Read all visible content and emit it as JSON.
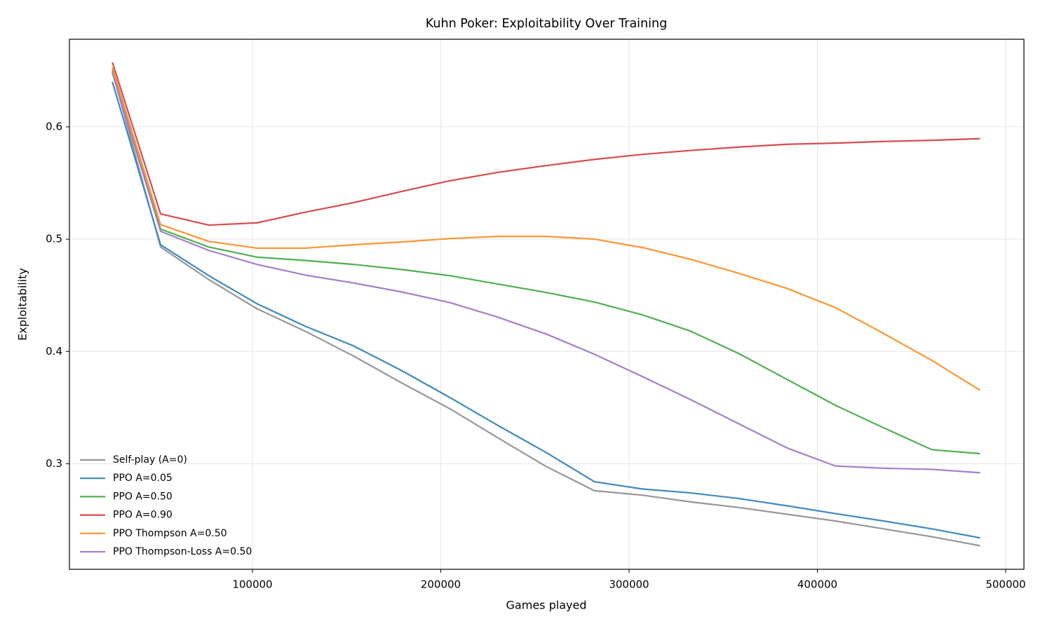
{
  "chart_data": {
    "type": "line",
    "title": "Kuhn Poker: Exploitability Over Training",
    "x_label": "Games played",
    "y_label": "Exploitability",
    "x": [
      25600,
      51200,
      76800,
      102400,
      128000,
      153600,
      179200,
      204800,
      230400,
      256000,
      281600,
      307200,
      332800,
      358400,
      384000,
      409600,
      435200,
      460800,
      486400
    ],
    "series": [
      {
        "name": "Self-play (A=0)",
        "color": "#979797",
        "values": [
          0.649,
          0.493,
          0.464,
          0.438,
          0.418,
          0.396,
          0.372,
          0.349,
          0.323,
          0.2975,
          0.276,
          0.272,
          0.266,
          0.261,
          0.255,
          0.249,
          0.242,
          0.235,
          0.227
        ]
      },
      {
        "name": "PPO A=0.05",
        "color": "#3d8ac0",
        "values": [
          0.64,
          0.495,
          0.4675,
          0.4425,
          0.4225,
          0.405,
          0.383,
          0.359,
          0.334,
          0.31,
          0.284,
          0.2775,
          0.274,
          0.269,
          0.2625,
          0.2556,
          0.249,
          0.242,
          0.234
        ]
      },
      {
        "name": "PPO A=0.50",
        "color": "#4fb04f",
        "values": [
          0.651,
          0.509,
          0.493,
          0.484,
          0.481,
          0.4775,
          0.473,
          0.4675,
          0.46,
          0.4525,
          0.444,
          0.4325,
          0.418,
          0.398,
          0.375,
          0.352,
          0.332,
          0.3125,
          0.309
        ]
      },
      {
        "name": "PPO A=0.90",
        "color": "#d84c4c",
        "values": [
          0.6575,
          0.5225,
          0.5125,
          0.5145,
          0.524,
          0.5325,
          0.5425,
          0.552,
          0.5595,
          0.5655,
          0.571,
          0.5755,
          0.579,
          0.582,
          0.5845,
          0.5855,
          0.587,
          0.588,
          0.5895
        ]
      },
      {
        "name": "PPO Thompson A=0.50",
        "color": "#ff9533",
        "values": [
          0.653,
          0.513,
          0.498,
          0.492,
          0.492,
          0.495,
          0.4975,
          0.5005,
          0.5025,
          0.5025,
          0.5,
          0.4925,
          0.482,
          0.4695,
          0.456,
          0.439,
          0.416,
          0.392,
          0.3655
        ]
      },
      {
        "name": "PPO Thompson-Loss A=0.50",
        "color": "#a57fcb",
        "values": [
          0.648,
          0.507,
          0.49,
          0.4775,
          0.468,
          0.461,
          0.453,
          0.4435,
          0.4305,
          0.4155,
          0.3975,
          0.3775,
          0.357,
          0.3355,
          0.314,
          0.298,
          0.296,
          0.295,
          0.292
        ]
      }
    ],
    "xlim": [
      2800,
      509700
    ],
    "ylim": [
      0.206,
      0.678
    ],
    "xticks": [
      100000,
      200000,
      300000,
      400000,
      500000
    ],
    "yticks": [
      0.3,
      0.4,
      0.5,
      0.6
    ],
    "grid": true,
    "legend": "lower left"
  }
}
